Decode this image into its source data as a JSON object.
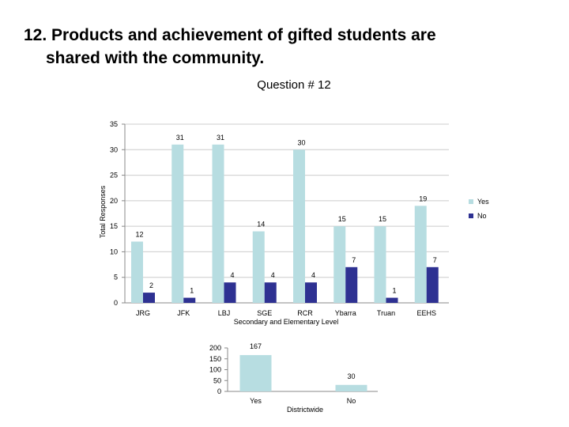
{
  "slide": {
    "title_line1": "12.  Products and achievement of gifted students are",
    "title_line2": "shared with the community."
  },
  "colors": {
    "yes": "#b7dde1",
    "no": "#2e3192",
    "axis": "#888888",
    "grid": "#cccccc"
  },
  "chart_data": [
    {
      "type": "bar",
      "title": "Question # 12",
      "xlabel": "Secondary and Elementary Level",
      "ylabel": "Total Responses",
      "categories": [
        "JRG",
        "JFK",
        "LBJ",
        "SGE",
        "RCR",
        "Ybarra",
        "Truan",
        "EEHS"
      ],
      "series": [
        {
          "name": "Yes",
          "values": [
            12,
            31,
            31,
            14,
            30,
            15,
            15,
            19
          ]
        },
        {
          "name": "No",
          "values": [
            2,
            1,
            4,
            4,
            4,
            7,
            1,
            7
          ]
        }
      ],
      "ylim": [
        0,
        35
      ],
      "yticks": [
        0,
        5,
        10,
        15,
        20,
        25,
        30,
        35
      ],
      "grid": true,
      "legend": "right",
      "data_labels": true
    },
    {
      "type": "bar",
      "title": "",
      "xlabel": "Districtwide",
      "ylabel": "",
      "categories": [
        "Yes",
        "No"
      ],
      "values": [
        167,
        30
      ],
      "ylim": [
        0,
        200
      ],
      "yticks": [
        0,
        50,
        100,
        150,
        200
      ],
      "grid": false,
      "data_labels": true
    }
  ]
}
